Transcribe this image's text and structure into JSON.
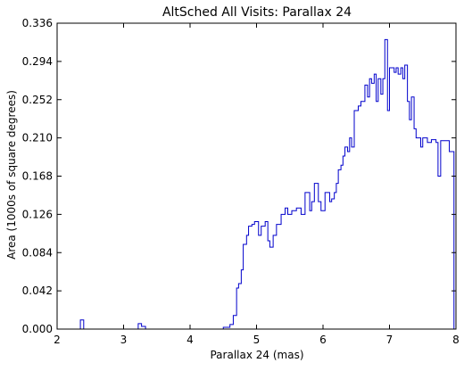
{
  "chart_data": {
    "type": "line",
    "style": "step",
    "title": "AltSched All Visits: Parallax 24",
    "xlabel": "Parallax 24 (mas)",
    "ylabel": "Area (1000s of square degrees)",
    "xlim": [
      2,
      8
    ],
    "ylim": [
      0,
      0.336
    ],
    "xticks": [
      "2",
      "3",
      "4",
      "5",
      "6",
      "7",
      "8"
    ],
    "yticks": [
      "0.000",
      "0.042",
      "0.084",
      "0.126",
      "0.168",
      "0.210",
      "0.252",
      "0.294",
      "0.336"
    ],
    "grid": false,
    "line_color": "#0000cc",
    "series": [
      {
        "points": [
          [
            2.0,
            0.0
          ],
          [
            2.35,
            0.0
          ],
          [
            2.35,
            0.01
          ],
          [
            2.4,
            0.01
          ],
          [
            2.4,
            0.0
          ],
          [
            3.22,
            0.0
          ],
          [
            3.22,
            0.006
          ],
          [
            3.27,
            0.006
          ],
          [
            3.27,
            0.003
          ],
          [
            3.33,
            0.003
          ],
          [
            3.33,
            0.0
          ],
          [
            4.5,
            0.0
          ],
          [
            4.5,
            0.002
          ],
          [
            4.6,
            0.002
          ],
          [
            4.6,
            0.005
          ],
          [
            4.65,
            0.005
          ],
          [
            4.65,
            0.015
          ],
          [
            4.7,
            0.015
          ],
          [
            4.7,
            0.045
          ],
          [
            4.73,
            0.045
          ],
          [
            4.73,
            0.05
          ],
          [
            4.77,
            0.05
          ],
          [
            4.77,
            0.065
          ],
          [
            4.8,
            0.065
          ],
          [
            4.8,
            0.093
          ],
          [
            4.85,
            0.093
          ],
          [
            4.85,
            0.103
          ],
          [
            4.88,
            0.103
          ],
          [
            4.88,
            0.113
          ],
          [
            4.93,
            0.113
          ],
          [
            4.93,
            0.115
          ],
          [
            4.97,
            0.115
          ],
          [
            4.97,
            0.118
          ],
          [
            5.03,
            0.118
          ],
          [
            5.03,
            0.103
          ],
          [
            5.07,
            0.103
          ],
          [
            5.07,
            0.113
          ],
          [
            5.13,
            0.113
          ],
          [
            5.13,
            0.118
          ],
          [
            5.17,
            0.118
          ],
          [
            5.17,
            0.097
          ],
          [
            5.2,
            0.097
          ],
          [
            5.2,
            0.09
          ],
          [
            5.25,
            0.09
          ],
          [
            5.25,
            0.103
          ],
          [
            5.3,
            0.103
          ],
          [
            5.3,
            0.115
          ],
          [
            5.37,
            0.115
          ],
          [
            5.37,
            0.126
          ],
          [
            5.43,
            0.126
          ],
          [
            5.43,
            0.133
          ],
          [
            5.47,
            0.133
          ],
          [
            5.47,
            0.126
          ],
          [
            5.53,
            0.126
          ],
          [
            5.53,
            0.13
          ],
          [
            5.6,
            0.13
          ],
          [
            5.6,
            0.133
          ],
          [
            5.67,
            0.133
          ],
          [
            5.67,
            0.126
          ],
          [
            5.73,
            0.126
          ],
          [
            5.73,
            0.15
          ],
          [
            5.8,
            0.15
          ],
          [
            5.8,
            0.13
          ],
          [
            5.83,
            0.13
          ],
          [
            5.83,
            0.14
          ],
          [
            5.87,
            0.14
          ],
          [
            5.87,
            0.16
          ],
          [
            5.93,
            0.16
          ],
          [
            5.93,
            0.14
          ],
          [
            5.97,
            0.14
          ],
          [
            5.97,
            0.13
          ],
          [
            6.03,
            0.13
          ],
          [
            6.03,
            0.15
          ],
          [
            6.1,
            0.15
          ],
          [
            6.1,
            0.14
          ],
          [
            6.13,
            0.14
          ],
          [
            6.13,
            0.143
          ],
          [
            6.17,
            0.143
          ],
          [
            6.17,
            0.15
          ],
          [
            6.2,
            0.15
          ],
          [
            6.2,
            0.16
          ],
          [
            6.23,
            0.16
          ],
          [
            6.23,
            0.175
          ],
          [
            6.27,
            0.175
          ],
          [
            6.27,
            0.18
          ],
          [
            6.3,
            0.18
          ],
          [
            6.3,
            0.19
          ],
          [
            6.33,
            0.19
          ],
          [
            6.33,
            0.2
          ],
          [
            6.37,
            0.2
          ],
          [
            6.37,
            0.195
          ],
          [
            6.4,
            0.195
          ],
          [
            6.4,
            0.21
          ],
          [
            6.43,
            0.21
          ],
          [
            6.43,
            0.2
          ],
          [
            6.47,
            0.2
          ],
          [
            6.47,
            0.24
          ],
          [
            6.53,
            0.24
          ],
          [
            6.53,
            0.245
          ],
          [
            6.57,
            0.245
          ],
          [
            6.57,
            0.25
          ],
          [
            6.63,
            0.25
          ],
          [
            6.63,
            0.268
          ],
          [
            6.67,
            0.268
          ],
          [
            6.67,
            0.255
          ],
          [
            6.7,
            0.255
          ],
          [
            6.7,
            0.275
          ],
          [
            6.73,
            0.275
          ],
          [
            6.73,
            0.27
          ],
          [
            6.77,
            0.27
          ],
          [
            6.77,
            0.28
          ],
          [
            6.8,
            0.28
          ],
          [
            6.8,
            0.25
          ],
          [
            6.83,
            0.25
          ],
          [
            6.83,
            0.275
          ],
          [
            6.87,
            0.275
          ],
          [
            6.87,
            0.258
          ],
          [
            6.9,
            0.258
          ],
          [
            6.9,
            0.275
          ],
          [
            6.93,
            0.275
          ],
          [
            6.93,
            0.318
          ],
          [
            6.97,
            0.318
          ],
          [
            6.97,
            0.24
          ],
          [
            7.0,
            0.24
          ],
          [
            7.0,
            0.287
          ],
          [
            7.07,
            0.287
          ],
          [
            7.07,
            0.282
          ],
          [
            7.1,
            0.282
          ],
          [
            7.1,
            0.287
          ],
          [
            7.13,
            0.287
          ],
          [
            7.13,
            0.28
          ],
          [
            7.17,
            0.28
          ],
          [
            7.17,
            0.287
          ],
          [
            7.2,
            0.287
          ],
          [
            7.2,
            0.275
          ],
          [
            7.23,
            0.275
          ],
          [
            7.23,
            0.29
          ],
          [
            7.27,
            0.29
          ],
          [
            7.27,
            0.25
          ],
          [
            7.3,
            0.25
          ],
          [
            7.3,
            0.23
          ],
          [
            7.33,
            0.23
          ],
          [
            7.33,
            0.255
          ],
          [
            7.37,
            0.255
          ],
          [
            7.37,
            0.22
          ],
          [
            7.4,
            0.22
          ],
          [
            7.4,
            0.21
          ],
          [
            7.47,
            0.21
          ],
          [
            7.47,
            0.2
          ],
          [
            7.5,
            0.2
          ],
          [
            7.5,
            0.21
          ],
          [
            7.57,
            0.21
          ],
          [
            7.57,
            0.205
          ],
          [
            7.63,
            0.205
          ],
          [
            7.63,
            0.208
          ],
          [
            7.7,
            0.208
          ],
          [
            7.7,
            0.205
          ],
          [
            7.73,
            0.205
          ],
          [
            7.73,
            0.168
          ],
          [
            7.77,
            0.168
          ],
          [
            7.77,
            0.207
          ],
          [
            7.9,
            0.207
          ],
          [
            7.9,
            0.195
          ],
          [
            7.97,
            0.195
          ],
          [
            7.97,
            0.0
          ]
        ]
      }
    ]
  }
}
